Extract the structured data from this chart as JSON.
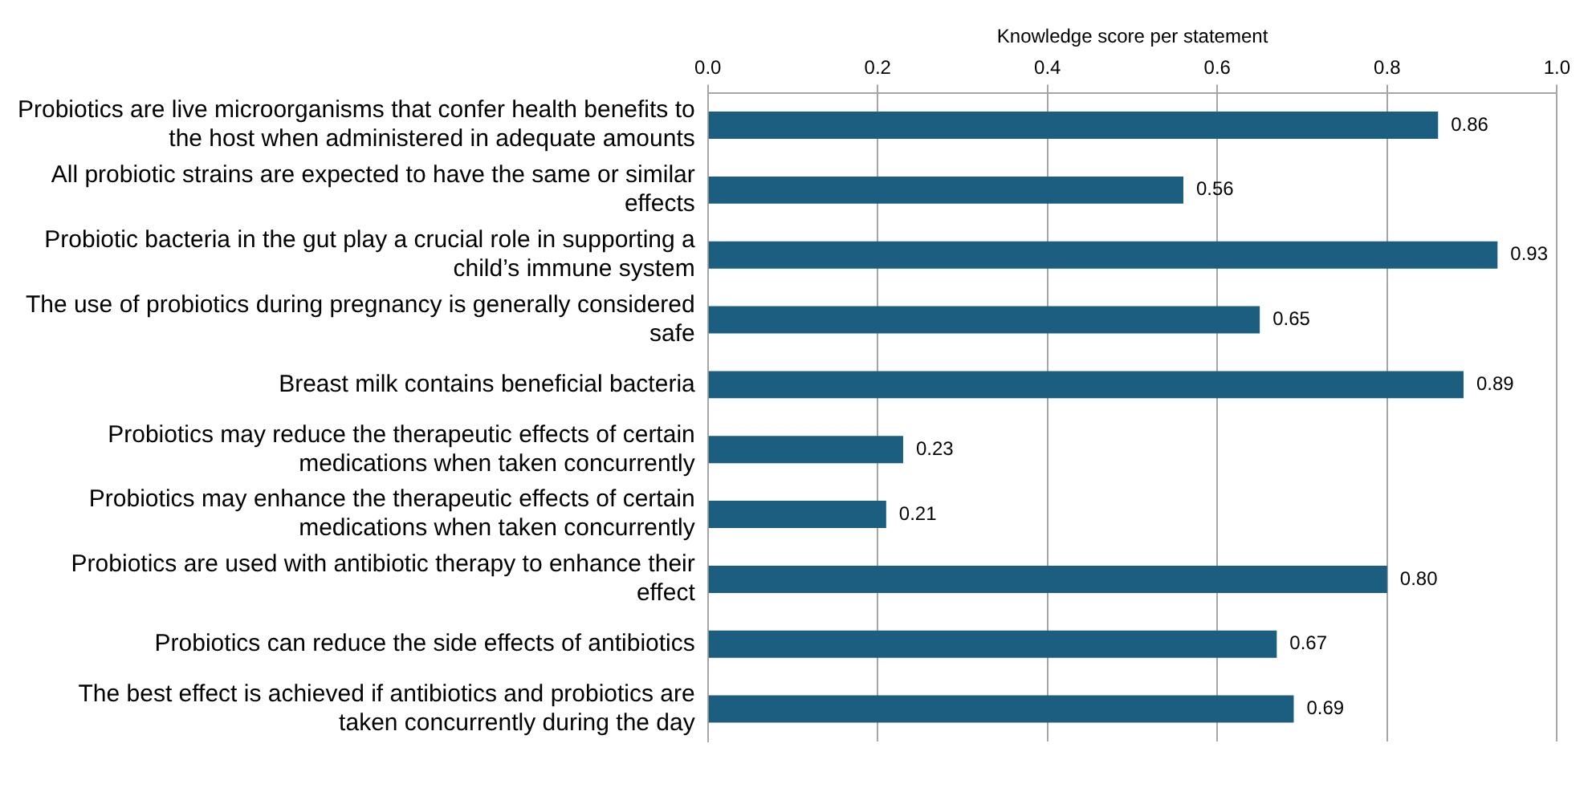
{
  "chart_data": {
    "type": "bar",
    "orientation": "horizontal",
    "xlabel": "Knowledge score per statement",
    "categories": [
      "Probiotics are live microorganisms that confer health benefits to the host when administered in adequate amounts",
      "All probiotic strains are expected to have the same or similar effects",
      "Probiotic bacteria in the gut play a crucial role in supporting a child’s immune system",
      "The use of probiotics during pregnancy is generally considered safe",
      "Breast milk contains beneficial bacteria",
      "Probiotics may reduce the therapeutic effects of certain medications when taken concurrently",
      "Probiotics may enhance the therapeutic effects of certain medications when taken concurrently",
      "Probiotics are used with antibiotic therapy to enhance their effect",
      "Probiotics can reduce the side effects of antibiotics",
      "The best effect is achieved if antibiotics and probiotics are taken concurrently during the day"
    ],
    "values": [
      0.86,
      0.56,
      0.93,
      0.65,
      0.89,
      0.23,
      0.21,
      0.8,
      0.67,
      0.69
    ],
    "value_labels": [
      "0.86",
      "0.56",
      "0.93",
      "0.65",
      "0.89",
      "0.23",
      "0.21",
      "0.80",
      "0.67",
      "0.69"
    ],
    "color": "#1b5e7f",
    "xlim": [
      0,
      1
    ],
    "xticks": [
      {
        "value": 0,
        "label": "0.0"
      },
      {
        "value": 0.2,
        "label": "0.2"
      },
      {
        "value": 0.4,
        "label": "0.4"
      },
      {
        "value": 0.6,
        "label": "0.6"
      },
      {
        "value": 0.8,
        "label": "0.8"
      },
      {
        "value": 1,
        "label": "1.0"
      }
    ],
    "grid": "x",
    "legend": false
  }
}
